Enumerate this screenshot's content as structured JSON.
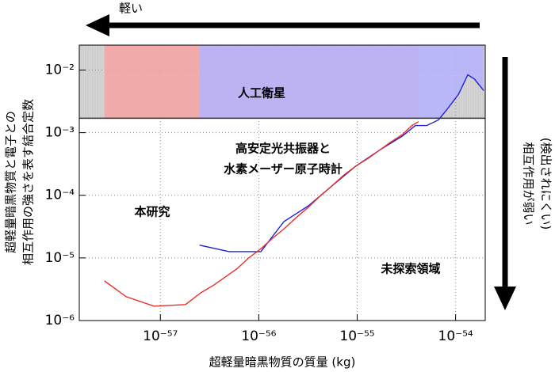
{
  "chart_data": {
    "type": "area",
    "xlabel": "超軽量暗黒物質の質量 (kg)",
    "ylabel": [
      "超軽量暗黒物質と電子との",
      "相互作用の強さを表す結合定数"
    ],
    "log_x": true,
    "log_y": true,
    "grid": true,
    "xlim": [
      1.5e-58,
      2e-54
    ],
    "ylim": [
      1e-06,
      0.025
    ],
    "xticks": [
      {
        "value": 1e-57,
        "label": "10⁻⁵⁷"
      },
      {
        "value": 1e-56,
        "label": "10⁻⁵⁶"
      },
      {
        "value": 1e-55,
        "label": "10⁻⁵⁵"
      },
      {
        "value": 1e-54,
        "label": "10⁻⁵⁴"
      }
    ],
    "yticks": [
      {
        "value": 1e-06,
        "label": "10⁻⁶"
      },
      {
        "value": 1e-05,
        "label": "10⁻⁵"
      },
      {
        "value": 0.0001,
        "label": "10⁻⁴"
      },
      {
        "value": 0.001,
        "label": "10⁻³"
      },
      {
        "value": 0.01,
        "label": "10⁻²"
      }
    ],
    "series": [
      {
        "name": [
          "人工衛星"
        ],
        "color": "#d6d6d6",
        "line_color": "#333333",
        "y": 0.0017
      },
      {
        "name": [
          "本研究"
        ],
        "color": "#f7a3a3",
        "line_color": "#e8302a",
        "x": [
          2.7e-58,
          4.5e-58,
          8.6e-58,
          1.8e-57,
          2.6e-57,
          3.5e-57,
          4.6e-57,
          6e-57,
          7.9e-57,
          1.05e-56,
          1.4e-56,
          1.8e-56,
          2.4e-56,
          3.2e-56,
          4.2e-56,
          5.5e-56,
          7.3e-56,
          9.6e-56,
          1.3e-55,
          1.7e-55,
          2.2e-55,
          2.9e-55,
          3.6e-55,
          4.2e-55
        ],
        "values": [
          4.3e-06,
          2.4e-06,
          1.7e-06,
          1.8e-06,
          2.8e-06,
          3.7e-06,
          5e-06,
          6.7e-06,
          1e-05,
          1.4e-05,
          2.1e-05,
          2.9e-05,
          4.4e-05,
          6.5e-05,
          9.7e-05,
          0.00014,
          0.00021,
          0.00029,
          0.00039,
          0.00053,
          0.00071,
          0.00094,
          0.0013,
          0.0015
        ]
      },
      {
        "name": [
          "高安定光共振器と",
          "水素メーザー原子時計"
        ],
        "color": "#b4b4ff",
        "line_color": "#2020d0",
        "x": [
          2.5e-57,
          5e-57,
          1.05e-56,
          1.8e-56,
          3.2e-56,
          5.5e-56,
          9.6e-56,
          1.7e-55,
          2.9e-55,
          3.9e-55,
          5.1e-55,
          6.7e-55,
          8.1e-55,
          1.07e-54,
          1.33e-54,
          1.55e-54,
          1.93e-54
        ],
        "values": [
          1.6e-05,
          1.26e-05,
          1.26e-05,
          3.8e-05,
          6.8e-05,
          0.00014,
          0.00029,
          0.00053,
          0.00089,
          0.0013,
          0.0013,
          0.0016,
          0.0023,
          0.0041,
          0.0084,
          0.0072,
          0.0047
        ]
      }
    ],
    "annotations": {
      "unexplored": "未探索領域",
      "light": "軽い",
      "weak": [
        "相互作用が弱い",
        "(検出されにくい)"
      ]
    }
  }
}
